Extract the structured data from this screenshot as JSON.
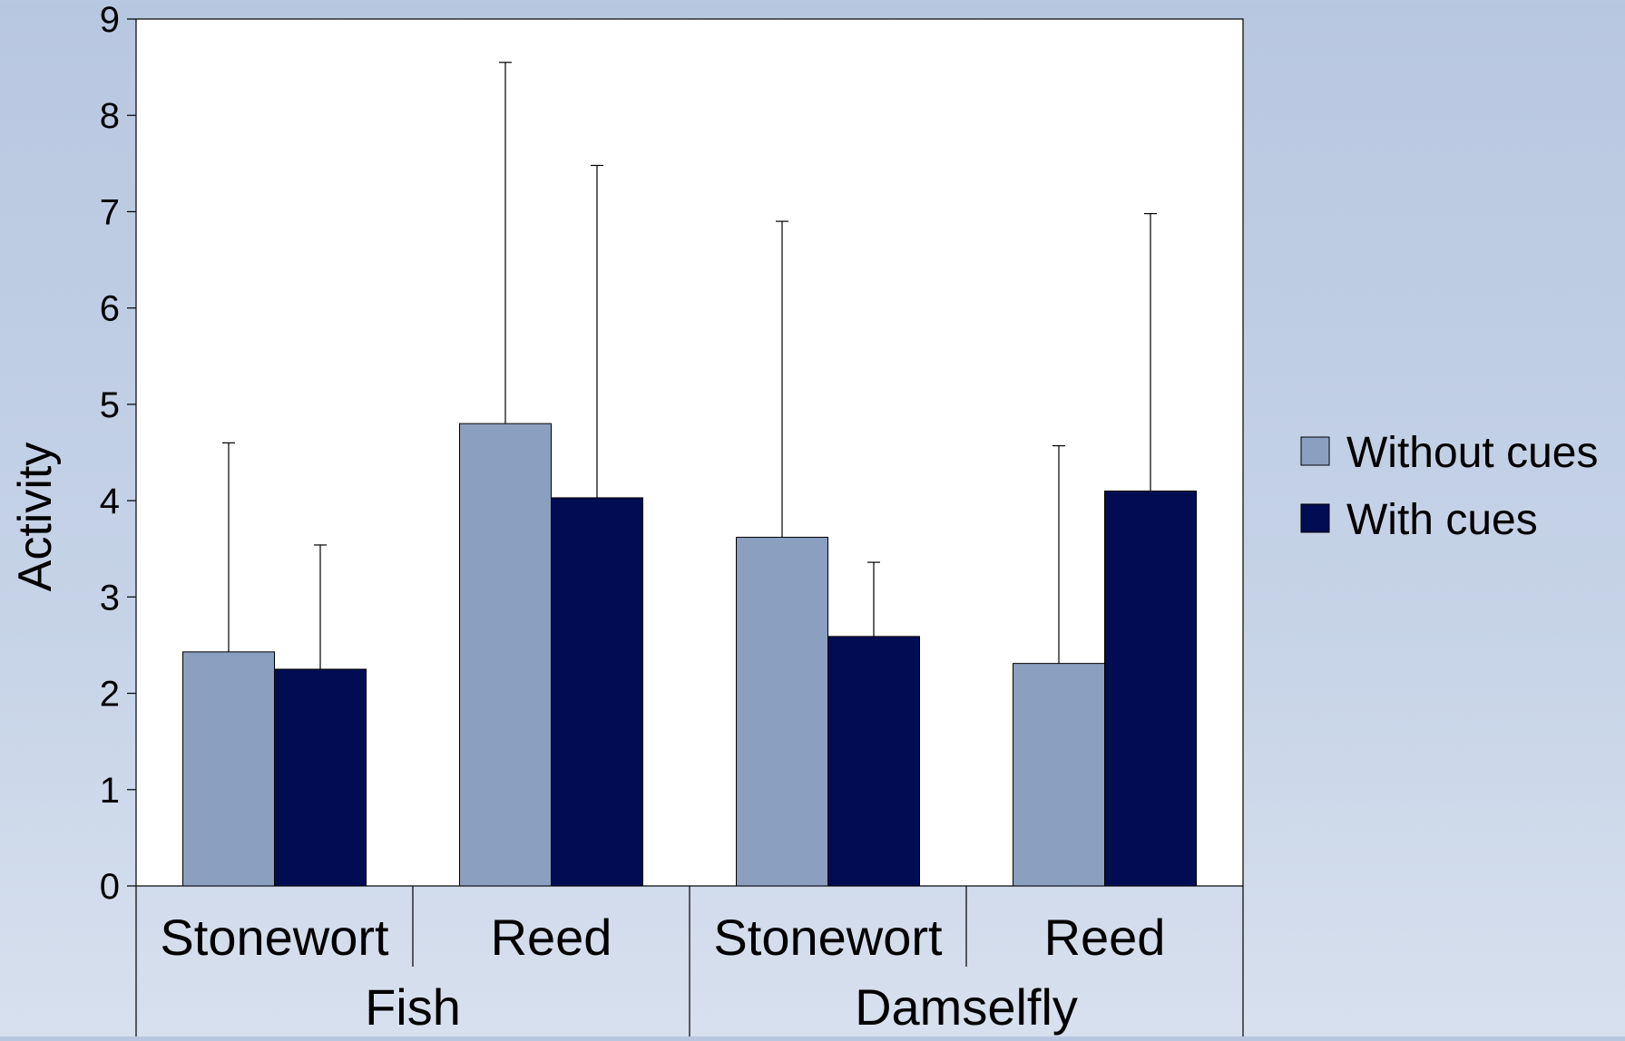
{
  "chart_data": {
    "type": "bar",
    "ylabel": "Activity",
    "ylim": [
      0,
      9
    ],
    "yticks": [
      0,
      1,
      2,
      3,
      4,
      5,
      6,
      7,
      8,
      9
    ],
    "groups": [
      {
        "label": "Fish",
        "categories": [
          "Stonewort",
          "Reed"
        ]
      },
      {
        "label": "Damselfly",
        "categories": [
          "Stonewort",
          "Reed"
        ]
      }
    ],
    "categories": [
      "Stonewort",
      "Reed",
      "Stonewort",
      "Reed"
    ],
    "series": [
      {
        "name": "Without cues",
        "color": "#8b9fc1",
        "values": [
          2.43,
          4.8,
          3.62,
          2.31
        ],
        "error_upper": [
          4.6,
          8.55,
          6.9,
          4.57
        ]
      },
      {
        "name": "With cues",
        "color": "#020c52",
        "values": [
          2.25,
          4.03,
          2.59,
          4.1
        ],
        "error_upper": [
          3.54,
          7.48,
          3.36,
          6.98
        ]
      }
    ],
    "grid": false,
    "legend_position": "right"
  }
}
